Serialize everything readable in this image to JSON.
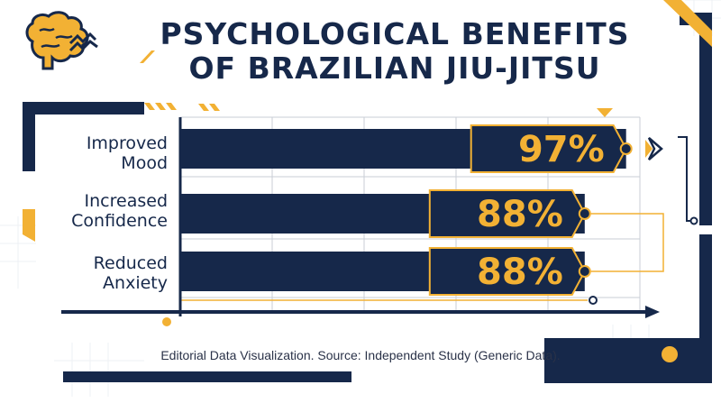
{
  "title_lines": [
    "PSYCHOLOGICAL BENEFITS",
    "OF BRAZILIAN JIU-JITSU"
  ],
  "source": "Editorial Data Visualization. Source: Independent Study (Generic Data).",
  "colors": {
    "navy": "#16284a",
    "gold": "#f2b134",
    "grid": "#c9cdd6",
    "background": "#ffffff"
  },
  "icons": {
    "header": "brain-icon"
  },
  "chart_data": {
    "type": "bar",
    "orientation": "horizontal",
    "categories": [
      "Improved\nMood",
      "Increased\nConfidence",
      "Reduced\nAnxiety"
    ],
    "category_lines": [
      [
        "Improved",
        "Mood"
      ],
      [
        "Increased",
        "Confidence"
      ],
      [
        "Reduced",
        "Anxiety"
      ]
    ],
    "values": [
      97,
      88,
      88
    ],
    "value_labels": [
      "97%",
      "88%",
      "88%"
    ],
    "xlim": [
      0,
      100
    ],
    "grid": true,
    "legend": "none"
  }
}
